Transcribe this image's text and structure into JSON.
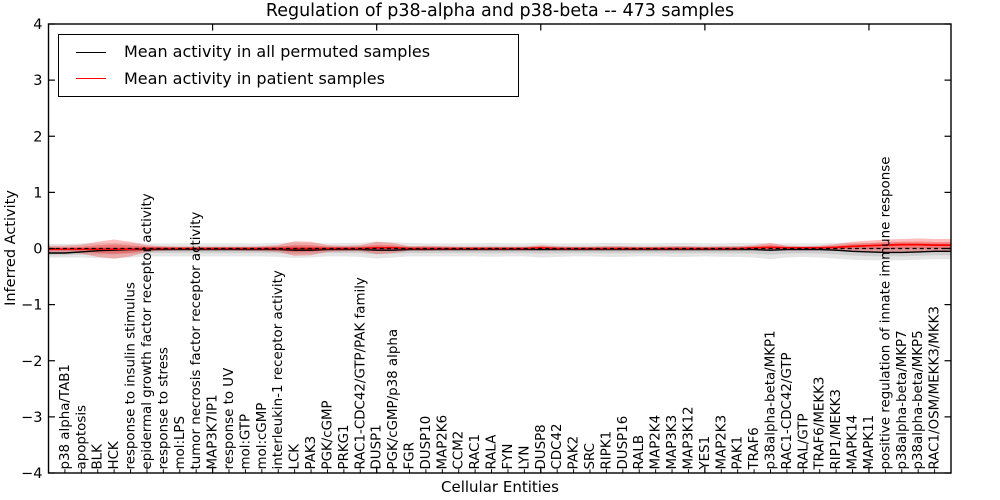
{
  "chart_data": {
    "type": "line",
    "title": "Regulation of p38-alpha and p38-beta -- 473 samples",
    "xlabel": "Cellular Entities",
    "ylabel": "Inferred Activity",
    "ylim": [
      -4,
      4
    ],
    "yticks": [
      4,
      3,
      2,
      1,
      0,
      -1,
      -2,
      -3,
      -4
    ],
    "xlim": [
      0,
      55
    ],
    "xticks_major": [
      10,
      20,
      30,
      40,
      50
    ],
    "grid": false,
    "legend_position": "upper left",
    "zero_line": {
      "style": "dashed",
      "color": "#000000"
    },
    "categories": [
      "p38 alpha/TAB1",
      "apoptosis",
      "BLK",
      "HCK",
      "response to insulin stimulus",
      "epidermal growth factor receptor activity",
      "response to stress",
      "mol:LPS",
      "tumor necrosis factor receptor activity",
      "MAP3K7IP1",
      "response to UV",
      "mol:GTP",
      "mol:cGMP",
      "interleukin-1 receptor activity",
      "LCK",
      "PAK3",
      "PGK/cGMP",
      "PRKG1",
      "RAC1-CDC42/GTP/PAK family",
      "DUSP1",
      "PGK/cGMP/p38 alpha",
      "FGR",
      "DUSP10",
      "MAP2K6",
      "CCM2",
      "RAC1",
      "RALA",
      "FYN",
      "LYN",
      "DUSP8",
      "CDC42",
      "PAK2",
      "SRC",
      "RIPK1",
      "DUSP16",
      "RALB",
      "MAP2K4",
      "MAP3K3",
      "MAP3K12",
      "YES1",
      "MAP2K3",
      "PAK1",
      "TRAF6",
      "p38alpha-beta/MKP1",
      "RAC1-CDC42/GTP",
      "RAL/GTP",
      "TRAF6/MEKK3",
      "RIP1/MEKK3",
      "MAPK14",
      "MAPK11",
      "positive regulation of innate immune response",
      "p38alpha-beta/MKP7",
      "p38alpha-beta/MKP5",
      "RAC1/OSM/MEKK3/MKK3"
    ],
    "series": [
      {
        "name": "Mean activity in all permuted samples",
        "color": "#000000",
        "band_color": "rgba(0,0,0,0.10)",
        "mean": [
          -0.08,
          -0.06,
          -0.04,
          -0.03,
          -0.02,
          -0.02,
          -0.02,
          -0.02,
          -0.02,
          -0.02,
          -0.02,
          -0.02,
          -0.02,
          -0.02,
          -0.03,
          -0.03,
          -0.02,
          -0.02,
          -0.02,
          -0.03,
          -0.03,
          -0.02,
          -0.02,
          -0.02,
          -0.02,
          -0.02,
          -0.02,
          -0.02,
          -0.02,
          -0.02,
          -0.02,
          -0.02,
          -0.02,
          -0.02,
          -0.02,
          -0.02,
          -0.02,
          -0.02,
          -0.02,
          -0.02,
          -0.02,
          -0.02,
          -0.02,
          -0.03,
          -0.02,
          -0.02,
          -0.02,
          -0.03,
          -0.05,
          -0.06,
          -0.07,
          -0.07,
          -0.06,
          -0.05
        ],
        "upper": [
          0.08,
          0.09,
          0.09,
          0.1,
          0.09,
          0.09,
          0.09,
          0.09,
          0.09,
          0.09,
          0.09,
          0.09,
          0.09,
          0.1,
          0.11,
          0.1,
          0.09,
          0.1,
          0.1,
          0.12,
          0.11,
          0.1,
          0.09,
          0.09,
          0.09,
          0.09,
          0.1,
          0.09,
          0.09,
          0.1,
          0.09,
          0.09,
          0.09,
          0.1,
          0.1,
          0.09,
          0.09,
          0.1,
          0.1,
          0.09,
          0.09,
          0.1,
          0.1,
          0.09,
          0.09,
          0.09,
          0.09,
          0.1,
          0.1,
          0.1,
          0.11,
          0.11,
          0.1,
          0.1
        ],
        "lower": [
          -0.16,
          -0.16,
          -0.17,
          -0.18,
          -0.16,
          -0.14,
          -0.14,
          -0.14,
          -0.14,
          -0.14,
          -0.14,
          -0.14,
          -0.14,
          -0.15,
          -0.17,
          -0.16,
          -0.14,
          -0.14,
          -0.15,
          -0.18,
          -0.16,
          -0.14,
          -0.14,
          -0.14,
          -0.14,
          -0.14,
          -0.15,
          -0.14,
          -0.14,
          -0.16,
          -0.15,
          -0.14,
          -0.14,
          -0.15,
          -0.15,
          -0.14,
          -0.14,
          -0.15,
          -0.15,
          -0.14,
          -0.15,
          -0.15,
          -0.16,
          -0.19,
          -0.16,
          -0.15,
          -0.16,
          -0.18,
          -0.2,
          -0.21,
          -0.21,
          -0.21,
          -0.2,
          -0.19
        ]
      },
      {
        "name": "Mean activity in patient samples",
        "color": "#ff0000",
        "band_color": "rgba(255,0,0,0.26)",
        "mean": [
          -0.01,
          -0.01,
          -0.01,
          -0.01,
          -0.01,
          0,
          0,
          0,
          0,
          0,
          0,
          0,
          0,
          0,
          0,
          0,
          0,
          0,
          0,
          0.01,
          0.01,
          0,
          0,
          0,
          0,
          0,
          0,
          0,
          0,
          0.01,
          0,
          0,
          0,
          0,
          0,
          0,
          0,
          0,
          0,
          0,
          0,
          0,
          0.01,
          0.02,
          0.01,
          0.01,
          0.01,
          0.02,
          0.04,
          0.05,
          0.06,
          0.07,
          0.07,
          0.06
        ],
        "upper": [
          0.05,
          0.07,
          0.12,
          0.16,
          0.12,
          0.06,
          0.04,
          0.03,
          0.03,
          0.03,
          0.03,
          0.03,
          0.04,
          0.06,
          0.13,
          0.12,
          0.06,
          0.05,
          0.06,
          0.12,
          0.1,
          0.04,
          0.05,
          0.04,
          0.03,
          0.03,
          0.03,
          0.03,
          0.03,
          0.06,
          0.04,
          0.03,
          0.03,
          0.04,
          0.04,
          0.03,
          0.03,
          0.04,
          0.04,
          0.03,
          0.04,
          0.04,
          0.06,
          0.1,
          0.05,
          0.04,
          0.05,
          0.08,
          0.12,
          0.14,
          0.16,
          0.17,
          0.18,
          0.17
        ],
        "lower": [
          -0.07,
          -0.09,
          -0.15,
          -0.18,
          -0.14,
          -0.06,
          -0.04,
          -0.03,
          -0.03,
          -0.03,
          -0.03,
          -0.04,
          -0.05,
          -0.06,
          -0.13,
          -0.12,
          -0.06,
          -0.05,
          -0.05,
          -0.1,
          -0.08,
          -0.04,
          -0.04,
          -0.03,
          -0.03,
          -0.03,
          -0.03,
          -0.03,
          -0.03,
          -0.04,
          -0.03,
          -0.03,
          -0.03,
          -0.03,
          -0.03,
          -0.03,
          -0.03,
          -0.03,
          -0.03,
          -0.03,
          -0.03,
          -0.03,
          -0.03,
          -0.04,
          -0.03,
          -0.03,
          -0.03,
          -0.04,
          -0.05,
          -0.06,
          -0.07,
          -0.07,
          -0.06,
          -0.05
        ]
      }
    ]
  }
}
